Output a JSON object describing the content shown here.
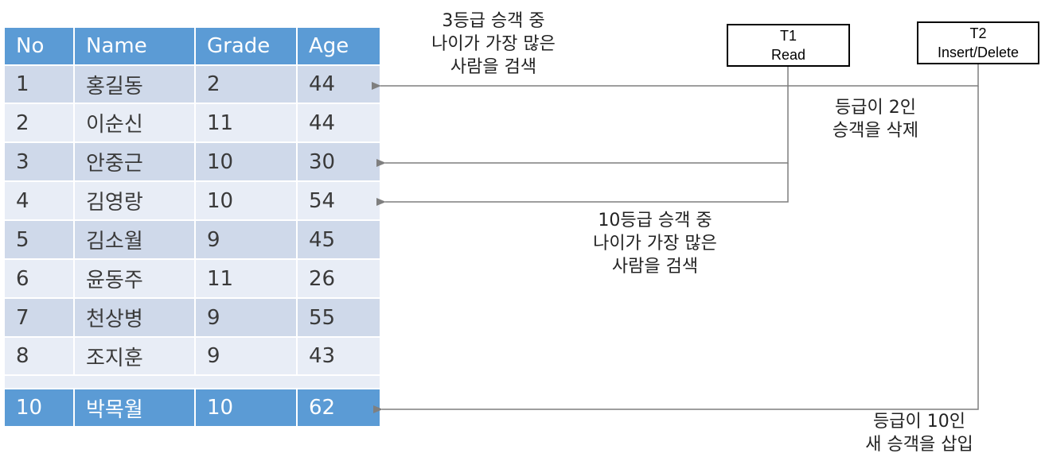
{
  "table": {
    "headers": [
      "No",
      "Name",
      "Grade",
      "Age"
    ],
    "rows": [
      [
        "1",
        "홍길동",
        "2",
        "44"
      ],
      [
        "2",
        "이순신",
        "11",
        "44"
      ],
      [
        "3",
        "안중근",
        "10",
        "30"
      ],
      [
        "4",
        "김영랑",
        "10",
        "54"
      ],
      [
        "5",
        "김소월",
        "9",
        "45"
      ],
      [
        "6",
        "윤동주",
        "11",
        "26"
      ],
      [
        "7",
        "천상병",
        "9",
        "55"
      ],
      [
        "8",
        "조지훈",
        "9",
        "43"
      ]
    ],
    "inserted_row": [
      "10",
      "박목월",
      "10",
      "62"
    ]
  },
  "transactions": {
    "t1": {
      "name": "T1",
      "op": "Read"
    },
    "t2": {
      "name": "T2",
      "op": "Insert/Delete"
    }
  },
  "notes": {
    "search_grade3": [
      "3등급 승객 중",
      "나이가 가장 많은",
      "사람을 검색"
    ],
    "delete_grade2": [
      "등급이 2인",
      "승객을 삭제"
    ],
    "search_grade10": [
      "10등급 승객 중",
      "나이가 가장 많은",
      "사람을 검색"
    ],
    "insert_grade10": [
      "등급이 10인",
      "새 승객을 삽입"
    ]
  },
  "colors": {
    "header": "#5b9bd5",
    "row_odd": "#cfd9ea",
    "row_even": "#e8edf6",
    "arrow": "#7f7f7f"
  }
}
